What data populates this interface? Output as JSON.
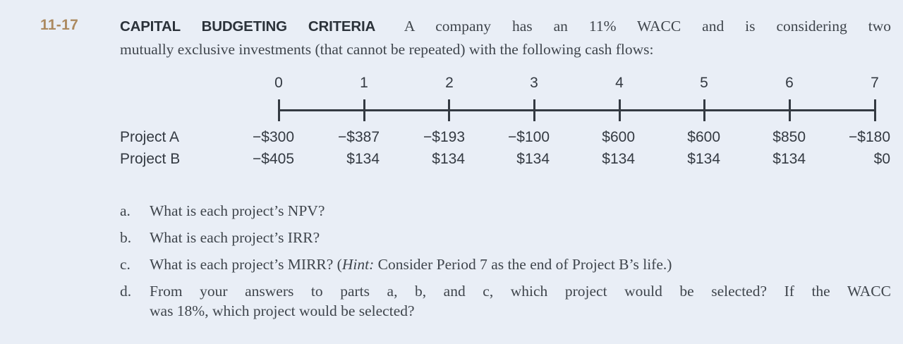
{
  "colors": {
    "background": "#e9eef6",
    "body_text": "#3f454c",
    "heading_text": "#2b323a",
    "accent_problem_number": "#ac8a60",
    "timeline": "#343a42"
  },
  "problem": {
    "number": "11-17",
    "title": "CAPITAL BUDGETING CRITERIA",
    "intro_line1": "A company has an 11% WACC and is considering two",
    "intro_line2": "mutually exclusive investments (that cannot be repeated) with the following cash flows:"
  },
  "timeline": {
    "periods": [
      "0",
      "1",
      "2",
      "3",
      "4",
      "5",
      "6",
      "7"
    ]
  },
  "cashflows": {
    "rows": [
      {
        "label": "Project A",
        "values": [
          "−$300",
          "−$387",
          "−$193",
          "−$100",
          "$600",
          "$600",
          "$850",
          "−$180"
        ]
      },
      {
        "label": "Project B",
        "values": [
          "−$405",
          "$134",
          "$134",
          "$134",
          "$134",
          "$134",
          "$134",
          "$0"
        ]
      }
    ]
  },
  "questions": {
    "a": {
      "label": "a.",
      "text": "What is each project’s NPV?"
    },
    "b": {
      "label": "b.",
      "text": "What is each project’s IRR?"
    },
    "c": {
      "label": "c.",
      "pre": "What is each project’s MIRR? (",
      "hint_italic": "Hint:",
      "post": " Consider Period 7 as the end of Project B’s life.)"
    },
    "d": {
      "label": "d.",
      "line1": "From your answers to parts a, b, and c, which project would be selected? If the WACC",
      "line2": "was 18%, which project would be selected?"
    }
  }
}
